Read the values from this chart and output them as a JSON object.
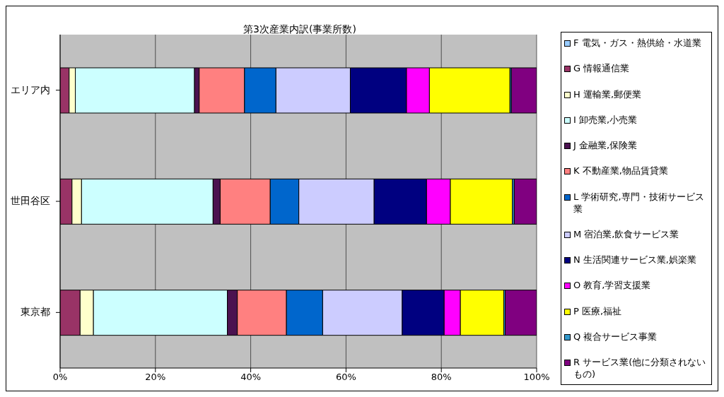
{
  "chart_data": {
    "type": "bar",
    "orientation": "horizontal",
    "stacked": true,
    "title": "第3次産業内訳(事業所数)",
    "categories": [
      "エリア内",
      "世田谷区",
      "東京都"
    ],
    "series": [
      {
        "name": "F 電気・ガス・熱供給・水道業",
        "color": "#99ccff",
        "values": [
          0,
          0,
          0
        ]
      },
      {
        "name": "G 情報通信業",
        "color": "#993366",
        "values": [
          1.9,
          2.5,
          4.2
        ]
      },
      {
        "name": "H 運輸業,郵便業",
        "color": "#ffffcc",
        "values": [
          1.3,
          2.0,
          2.8
        ]
      },
      {
        "name": "I 卸売業,小売業",
        "color": "#ccffff",
        "values": [
          25.0,
          27.6,
          28.1
        ]
      },
      {
        "name": "J 金融業,保険業",
        "color": "#4b1250",
        "values": [
          1.0,
          1.5,
          2.1
        ]
      },
      {
        "name": "K 不動産業,物品賃貸業",
        "color": "#ff8080",
        "values": [
          9.5,
          10.5,
          10.3
        ]
      },
      {
        "name": "L 学術研究,専門・技術サービス業",
        "color": "#0066cc",
        "values": [
          6.6,
          6.0,
          7.6
        ]
      },
      {
        "name": "M 宿泊業,飲食サービス業",
        "color": "#ccccff",
        "values": [
          15.6,
          15.8,
          16.7
        ]
      },
      {
        "name": "N 生活関連サービス業,娯楽業",
        "color": "#000080",
        "values": [
          11.8,
          11.0,
          8.8
        ]
      },
      {
        "name": "O 教育,学習支援業",
        "color": "#ff00ff",
        "values": [
          4.8,
          5.0,
          3.4
        ]
      },
      {
        "name": "P 医療,福祉",
        "color": "#ffff00",
        "values": [
          16.9,
          13.0,
          9.1
        ]
      },
      {
        "name": "Q 複合サービス事業",
        "color": "#3399cc",
        "values": [
          0.3,
          0.4,
          0.3
        ]
      },
      {
        "name": "R サービス業(他に分類されないもの)",
        "color": "#800080",
        "values": [
          5.3,
          4.7,
          6.6
        ]
      }
    ],
    "xlim": [
      0,
      100
    ],
    "xticks": [
      {
        "value": 0,
        "label": "0%"
      },
      {
        "value": 20,
        "label": "20%"
      },
      {
        "value": 40,
        "label": "40%"
      },
      {
        "value": 60,
        "label": "60%"
      },
      {
        "value": 80,
        "label": "80%"
      },
      {
        "value": 100,
        "label": "100%"
      }
    ],
    "grid": "x",
    "legend": "right"
  }
}
